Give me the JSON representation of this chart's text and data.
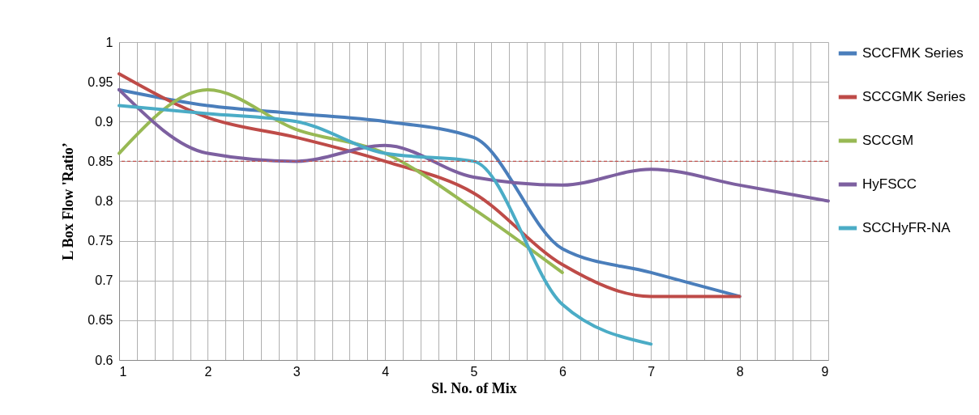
{
  "chart_data": {
    "type": "line",
    "xlabel": "Sl. No. of Mix",
    "ylabel": "L Box Flow  'Ratio’",
    "x": [
      1,
      2,
      3,
      4,
      5,
      6,
      7,
      8,
      9
    ],
    "series": [
      {
        "name": "SCCFMK Series",
        "color": "#4a7ebb",
        "x": [
          1,
          2,
          3,
          4,
          5,
          6,
          7,
          8
        ],
        "values": [
          0.94,
          0.92,
          0.91,
          0.9,
          0.88,
          0.74,
          0.71,
          0.68
        ]
      },
      {
        "name": "SCCGMK Series",
        "color": "#be4b48",
        "x": [
          1,
          2,
          3,
          4,
          5,
          6,
          7,
          8
        ],
        "values": [
          0.96,
          0.905,
          0.88,
          0.85,
          0.81,
          0.72,
          0.68,
          0.68
        ]
      },
      {
        "name": "SCCGM",
        "color": "#98b954",
        "x": [
          1,
          2,
          3,
          4,
          5,
          6
        ],
        "values": [
          0.86,
          0.94,
          0.89,
          0.86,
          0.79,
          0.71
        ]
      },
      {
        "name": "HyFSCC",
        "color": "#7d60a0",
        "values": [
          0.94,
          0.86,
          0.85,
          0.87,
          0.83,
          0.82,
          0.84,
          0.82,
          0.8
        ]
      },
      {
        "name": "SCCHyFR-NA",
        "color": "#4bacc6",
        "x": [
          1,
          2,
          3,
          4,
          5,
          6,
          7
        ],
        "values": [
          0.92,
          0.91,
          0.9,
          0.86,
          0.85,
          0.67,
          0.62
        ]
      }
    ],
    "xlim": [
      1,
      9
    ],
    "xticks": [
      1,
      {
        "value": 1.2,
        "label": null
      },
      {
        "value": 1.4,
        "label": null
      },
      {
        "value": 1.6,
        "label": null
      },
      {
        "value": 1.8,
        "label": null
      },
      2,
      {
        "value": 2.2,
        "label": null
      },
      {
        "value": 2.4,
        "label": null
      },
      {
        "value": 2.6,
        "label": null
      },
      {
        "value": 2.8,
        "label": null
      },
      3,
      {
        "value": 3.2,
        "label": null
      },
      {
        "value": 3.4,
        "label": null
      },
      {
        "value": 3.6,
        "label": null
      },
      {
        "value": 3.8,
        "label": null
      },
      4,
      {
        "value": 4.2,
        "label": null
      },
      {
        "value": 4.4,
        "label": null
      },
      {
        "value": 4.6,
        "label": null
      },
      {
        "value": 4.8,
        "label": null
      },
      5,
      {
        "value": 5.2,
        "label": null
      },
      {
        "value": 5.4,
        "label": null
      },
      {
        "value": 5.6,
        "label": null
      },
      {
        "value": 5.8,
        "label": null
      },
      6,
      {
        "value": 6.2,
        "label": null
      },
      {
        "value": 6.4,
        "label": null
      },
      {
        "value": 6.6,
        "label": null
      },
      {
        "value": 6.8,
        "label": null
      },
      7,
      {
        "value": 7.2,
        "label": null
      },
      {
        "value": 7.4,
        "label": null
      },
      {
        "value": 7.6,
        "label": null
      },
      {
        "value": 7.8,
        "label": null
      },
      8,
      {
        "value": 8.2,
        "label": null
      },
      {
        "value": 8.4,
        "label": null
      },
      {
        "value": 8.6,
        "label": null
      },
      {
        "value": 8.8,
        "label": null
      },
      9
    ],
    "ylim": [
      0.6,
      1
    ],
    "yticks": [
      0.6,
      0.65,
      0.7,
      0.75,
      0.8,
      0.85,
      0.9,
      0.95,
      1
    ],
    "grid": true,
    "legend": "right",
    "marker": "none",
    "line_style": "solid",
    "ref_lines": [
      {
        "axis": "y",
        "value": 0.85,
        "color": "#c0504d",
        "line_style": "dashed"
      }
    ]
  }
}
